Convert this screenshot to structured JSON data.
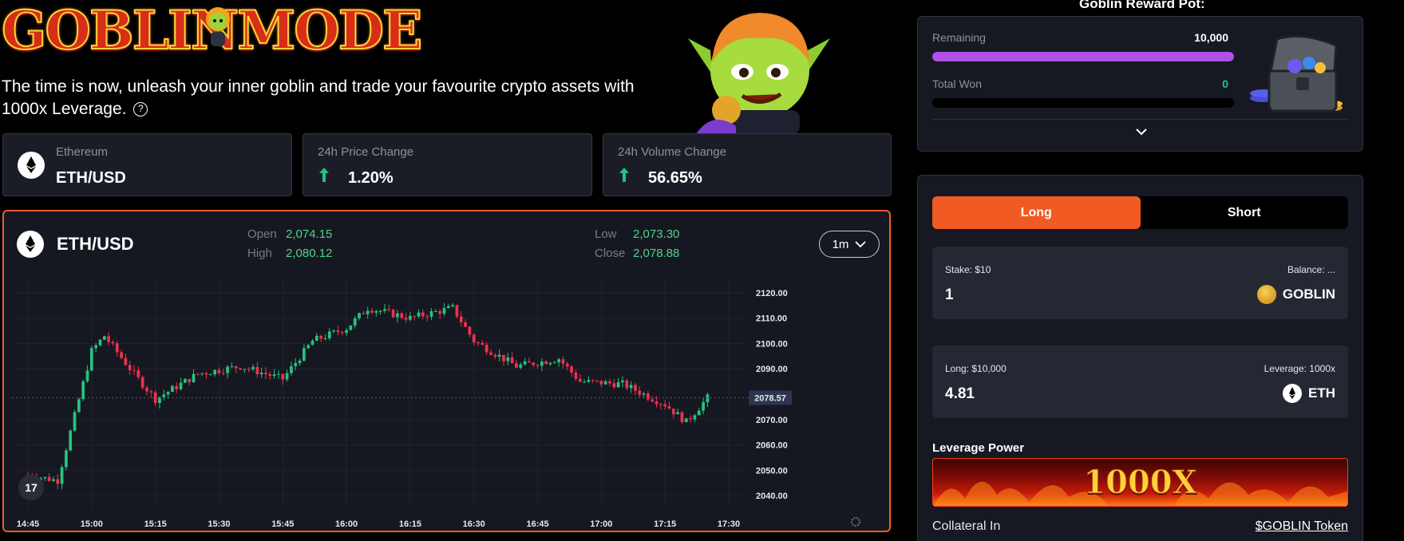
{
  "header": {
    "logo_text": "GOBLINMODE",
    "tagline": "The time is now, unleash your inner goblin and trade your favourite crypto assets with 1000x Leverage.",
    "help_icon": "question-circle-icon"
  },
  "stats": {
    "asset": {
      "label": "Ethereum",
      "value": "ETH/USD",
      "icon": "ethereum-icon"
    },
    "price_change": {
      "label": "24h Price Change",
      "value": "1.20%",
      "icon": "arrow-up-icon"
    },
    "volume_change": {
      "label": "24h Volume Change",
      "value": "56.65%",
      "icon": "arrow-up-icon"
    }
  },
  "chart": {
    "pair": "ETH/USD",
    "ohlc": {
      "open_label": "Open",
      "open": "2,074.15",
      "high_label": "High",
      "high": "2,080.12",
      "low_label": "Low",
      "low": "2,073.30",
      "close_label": "Close",
      "close": "2,078.88"
    },
    "timeframe": "1m",
    "current_price": "2078.57",
    "price_ticks": [
      "2120.00",
      "2110.00",
      "2100.00",
      "2090.00",
      "2070.00",
      "2060.00",
      "2050.00",
      "2040.00"
    ],
    "time_ticks": [
      "14:45",
      "15:00",
      "15:15",
      "15:30",
      "15:45",
      "16:00",
      "16:15",
      "16:30",
      "16:45",
      "17:00",
      "17:15",
      "17:30"
    ],
    "colors": {
      "up": "#26c281",
      "down": "#f0304e",
      "accent": "#f15a22"
    },
    "tv_logo": "17"
  },
  "chart_data": {
    "type": "candlestick",
    "title": "ETH/USD",
    "xlabel": "",
    "ylabel": "",
    "ylim": [
      2035,
      2125
    ],
    "x_range": [
      "14:45",
      "17:30"
    ],
    "close_path": [
      [
        "14:45",
        2048
      ],
      [
        "14:52",
        2046
      ],
      [
        "15:00",
        2097
      ],
      [
        "15:03",
        2103
      ],
      [
        "15:10",
        2088
      ],
      [
        "15:15",
        2078
      ],
      [
        "15:25",
        2088
      ],
      [
        "15:35",
        2091
      ],
      [
        "15:45",
        2086
      ],
      [
        "15:52",
        2101
      ],
      [
        "16:00",
        2106
      ],
      [
        "16:05",
        2114
      ],
      [
        "16:15",
        2110
      ],
      [
        "16:25",
        2114
      ],
      [
        "16:30",
        2101
      ],
      [
        "16:40",
        2091
      ],
      [
        "16:50",
        2094
      ],
      [
        "16:55",
        2085
      ],
      [
        "17:05",
        2084
      ],
      [
        "17:15",
        2076
      ],
      [
        "17:20",
        2069
      ],
      [
        "17:25",
        2078.57
      ]
    ]
  },
  "reward_pot": {
    "title": "Goblin Reward Pot:",
    "remaining_label": "Remaining",
    "remaining_value": "10,000",
    "remaining_fraction": 1.0,
    "won_label": "Total Won",
    "won_value": "0",
    "won_fraction": 0.0,
    "expand_icon": "chevron-down-icon",
    "chest_icon": "treasure-chest-icon"
  },
  "trade": {
    "long_label": "Long",
    "short_label": "Short",
    "stake_label": "Stake: $10",
    "balance_label": "Balance: ...",
    "stake_value": "1",
    "stake_token": "GOBLIN",
    "long_position_label": "Long: $10,000",
    "leverage_label": "Leverage: 1000x",
    "position_value": "4.81",
    "position_token": "ETH",
    "leverage_power_title": "Leverage Power",
    "leverage_banner": "1000X",
    "collateral_label": "Collateral In",
    "collateral_link": "$GOBLIN Token"
  }
}
